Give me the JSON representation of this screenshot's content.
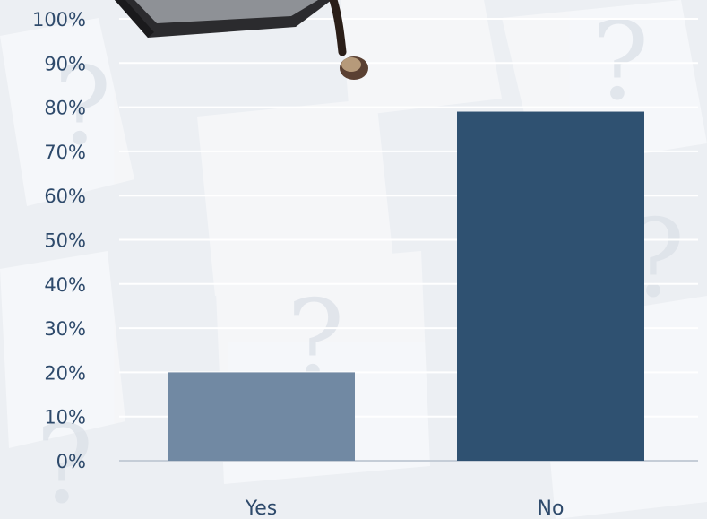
{
  "chart_data": {
    "type": "bar",
    "title": "",
    "xlabel": "",
    "ylabel": "",
    "categories": [
      "Yes",
      "No"
    ],
    "values": [
      20,
      79
    ],
    "bar_colors": [
      "#7189a3",
      "#2f5171"
    ],
    "ylim": [
      0,
      100
    ],
    "yticks": [
      0,
      10,
      20,
      30,
      40,
      50,
      60,
      70,
      80,
      90,
      100
    ],
    "ytick_labels": [
      "0%",
      "10%",
      "20%",
      "30%",
      "40%",
      "50%",
      "60%",
      "70%",
      "80%",
      "90%",
      "100%"
    ],
    "grid": true,
    "legend": "none"
  },
  "colors": {
    "background": "#eceff3",
    "gridline": "#ffffff",
    "axis_text": "#2e4a6b"
  },
  "decoration": {
    "illustration": "graduation-cap-icon",
    "background_pattern": "question-mark-papers"
  }
}
